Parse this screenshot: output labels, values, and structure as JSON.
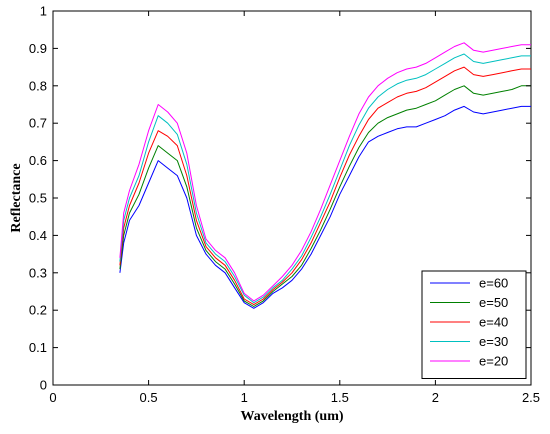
{
  "chart_data": {
    "type": "line",
    "xlabel": "Wavelength (um)",
    "ylabel": "Reflectance",
    "xlim": [
      0,
      2.5
    ],
    "ylim": [
      0,
      1
    ],
    "xticks": [
      0,
      0.5,
      1,
      1.5,
      2,
      2.5
    ],
    "xtick_labels": [
      "0",
      "0.5",
      "1",
      "1.5",
      "2",
      "2.5"
    ],
    "yticks": [
      0,
      0.1,
      0.2,
      0.3,
      0.4,
      0.5,
      0.6,
      0.7,
      0.8,
      0.9,
      1
    ],
    "ytick_labels": [
      "0",
      "0.1",
      "0.2",
      "0.3",
      "0.4",
      "0.5",
      "0.6",
      "0.7",
      "0.8",
      "0.9",
      "1"
    ],
    "grid": false,
    "legend_position": "bottom-right",
    "series": [
      {
        "name": "e=60",
        "color": "#0000ff",
        "x": [
          0.35,
          0.37,
          0.4,
          0.45,
          0.5,
          0.55,
          0.6,
          0.65,
          0.7,
          0.75,
          0.8,
          0.85,
          0.9,
          0.95,
          1.0,
          1.05,
          1.1,
          1.15,
          1.2,
          1.25,
          1.3,
          1.35,
          1.4,
          1.45,
          1.5,
          1.55,
          1.6,
          1.65,
          1.7,
          1.75,
          1.8,
          1.85,
          1.9,
          1.95,
          2.0,
          2.05,
          2.1,
          2.15,
          2.2,
          2.25,
          2.3,
          2.35,
          2.4,
          2.45,
          2.5
        ],
        "y": [
          0.3,
          0.38,
          0.44,
          0.48,
          0.54,
          0.6,
          0.58,
          0.56,
          0.5,
          0.4,
          0.35,
          0.32,
          0.3,
          0.26,
          0.22,
          0.205,
          0.22,
          0.245,
          0.26,
          0.28,
          0.31,
          0.35,
          0.4,
          0.45,
          0.51,
          0.56,
          0.61,
          0.65,
          0.665,
          0.675,
          0.685,
          0.69,
          0.69,
          0.7,
          0.71,
          0.72,
          0.735,
          0.745,
          0.73,
          0.725,
          0.73,
          0.735,
          0.74,
          0.745,
          0.745
        ]
      },
      {
        "name": "e=50",
        "color": "#008000",
        "x": [
          0.35,
          0.37,
          0.4,
          0.45,
          0.5,
          0.55,
          0.6,
          0.65,
          0.7,
          0.75,
          0.8,
          0.85,
          0.9,
          0.95,
          1.0,
          1.05,
          1.1,
          1.15,
          1.2,
          1.25,
          1.3,
          1.35,
          1.4,
          1.45,
          1.5,
          1.55,
          1.6,
          1.65,
          1.7,
          1.75,
          1.8,
          1.85,
          1.9,
          1.95,
          2.0,
          2.05,
          2.1,
          2.15,
          2.2,
          2.25,
          2.3,
          2.35,
          2.4,
          2.45,
          2.5
        ],
        "y": [
          0.31,
          0.4,
          0.46,
          0.51,
          0.58,
          0.64,
          0.62,
          0.6,
          0.53,
          0.42,
          0.36,
          0.33,
          0.31,
          0.27,
          0.225,
          0.21,
          0.225,
          0.25,
          0.27,
          0.29,
          0.32,
          0.365,
          0.415,
          0.47,
          0.53,
          0.585,
          0.635,
          0.675,
          0.7,
          0.715,
          0.725,
          0.735,
          0.74,
          0.75,
          0.76,
          0.775,
          0.79,
          0.8,
          0.78,
          0.775,
          0.78,
          0.785,
          0.79,
          0.8,
          0.8
        ]
      },
      {
        "name": "e=40",
        "color": "#ff0000",
        "x": [
          0.35,
          0.37,
          0.4,
          0.45,
          0.5,
          0.55,
          0.6,
          0.65,
          0.7,
          0.75,
          0.8,
          0.85,
          0.9,
          0.95,
          1.0,
          1.05,
          1.1,
          1.15,
          1.2,
          1.25,
          1.3,
          1.35,
          1.4,
          1.45,
          1.5,
          1.55,
          1.6,
          1.65,
          1.7,
          1.75,
          1.8,
          1.85,
          1.9,
          1.95,
          2.0,
          2.05,
          2.1,
          2.15,
          2.2,
          2.25,
          2.3,
          2.35,
          2.4,
          2.45,
          2.5
        ],
        "y": [
          0.32,
          0.42,
          0.48,
          0.54,
          0.62,
          0.68,
          0.665,
          0.64,
          0.56,
          0.44,
          0.37,
          0.34,
          0.32,
          0.28,
          0.23,
          0.215,
          0.23,
          0.255,
          0.275,
          0.3,
          0.335,
          0.38,
          0.435,
          0.49,
          0.555,
          0.615,
          0.665,
          0.71,
          0.74,
          0.755,
          0.77,
          0.78,
          0.785,
          0.795,
          0.81,
          0.825,
          0.84,
          0.85,
          0.83,
          0.825,
          0.83,
          0.835,
          0.84,
          0.845,
          0.845
        ]
      },
      {
        "name": "e=30",
        "color": "#00c0c0",
        "x": [
          0.35,
          0.37,
          0.4,
          0.45,
          0.5,
          0.55,
          0.6,
          0.65,
          0.7,
          0.75,
          0.8,
          0.85,
          0.9,
          0.95,
          1.0,
          1.05,
          1.1,
          1.15,
          1.2,
          1.25,
          1.3,
          1.35,
          1.4,
          1.45,
          1.5,
          1.55,
          1.6,
          1.65,
          1.7,
          1.75,
          1.8,
          1.85,
          1.9,
          1.95,
          2.0,
          2.05,
          2.1,
          2.15,
          2.2,
          2.25,
          2.3,
          2.35,
          2.4,
          2.45,
          2.5
        ],
        "y": [
          0.33,
          0.44,
          0.5,
          0.56,
          0.65,
          0.72,
          0.7,
          0.67,
          0.59,
          0.46,
          0.38,
          0.35,
          0.33,
          0.29,
          0.24,
          0.22,
          0.235,
          0.26,
          0.28,
          0.31,
          0.345,
          0.395,
          0.45,
          0.51,
          0.575,
          0.64,
          0.695,
          0.74,
          0.77,
          0.79,
          0.805,
          0.815,
          0.82,
          0.83,
          0.845,
          0.86,
          0.875,
          0.885,
          0.865,
          0.86,
          0.865,
          0.87,
          0.875,
          0.88,
          0.88
        ]
      },
      {
        "name": "e=20",
        "color": "#ff00ff",
        "x": [
          0.35,
          0.37,
          0.4,
          0.45,
          0.5,
          0.55,
          0.6,
          0.65,
          0.7,
          0.75,
          0.8,
          0.85,
          0.9,
          0.95,
          1.0,
          1.05,
          1.1,
          1.15,
          1.2,
          1.25,
          1.3,
          1.35,
          1.4,
          1.45,
          1.5,
          1.55,
          1.6,
          1.65,
          1.7,
          1.75,
          1.8,
          1.85,
          1.9,
          1.95,
          2.0,
          2.05,
          2.1,
          2.15,
          2.2,
          2.25,
          2.3,
          2.35,
          2.4,
          2.45,
          2.5
        ],
        "y": [
          0.34,
          0.46,
          0.52,
          0.59,
          0.68,
          0.75,
          0.73,
          0.7,
          0.62,
          0.48,
          0.39,
          0.36,
          0.34,
          0.3,
          0.245,
          0.225,
          0.24,
          0.265,
          0.29,
          0.32,
          0.36,
          0.41,
          0.47,
          0.535,
          0.6,
          0.665,
          0.725,
          0.77,
          0.8,
          0.82,
          0.835,
          0.845,
          0.85,
          0.86,
          0.875,
          0.89,
          0.905,
          0.915,
          0.895,
          0.89,
          0.895,
          0.9,
          0.905,
          0.91,
          0.91
        ]
      }
    ]
  }
}
